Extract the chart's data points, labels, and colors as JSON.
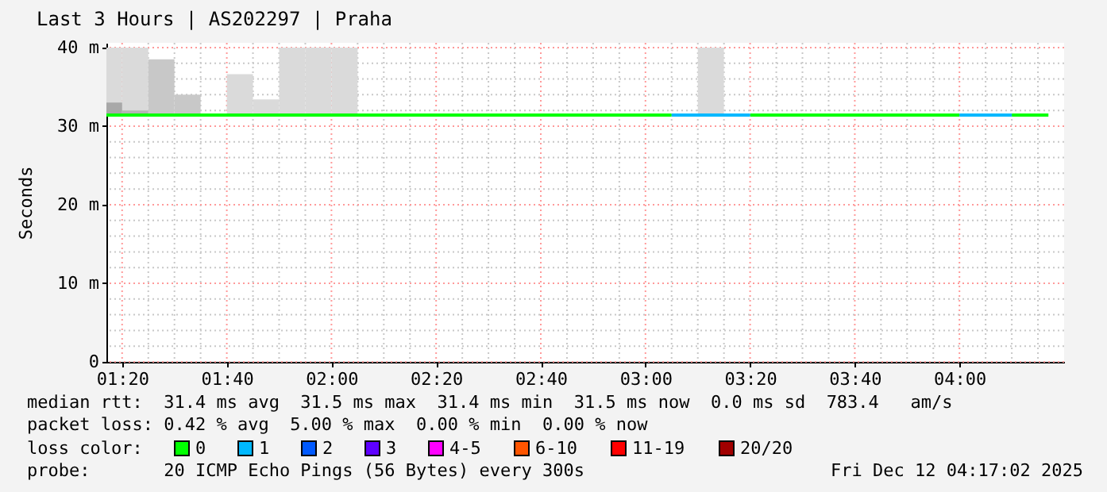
{
  "chart_data": {
    "type": "line",
    "title": "Last 3 Hours | AS202297 | Praha",
    "ylabel": "Seconds",
    "xlim": [
      1.2833,
      4.3333
    ],
    "ylim": [
      0,
      40.6
    ],
    "xticks": [
      {
        "value": 1.3333,
        "label": "01:20"
      },
      {
        "value": 1.4167,
        "label": null
      },
      {
        "value": 1.5,
        "label": null
      },
      {
        "value": 1.5833,
        "label": null
      },
      {
        "value": 1.6667,
        "label": "01:40"
      },
      {
        "value": 1.75,
        "label": null
      },
      {
        "value": 1.8333,
        "label": null
      },
      {
        "value": 1.9167,
        "label": null
      },
      {
        "value": 2,
        "label": "02:00"
      },
      {
        "value": 2.0833,
        "label": null
      },
      {
        "value": 2.1667,
        "label": null
      },
      {
        "value": 2.25,
        "label": null
      },
      {
        "value": 2.3333,
        "label": "02:20"
      },
      {
        "value": 2.4167,
        "label": null
      },
      {
        "value": 2.5,
        "label": null
      },
      {
        "value": 2.5833,
        "label": null
      },
      {
        "value": 2.6667,
        "label": "02:40"
      },
      {
        "value": 2.75,
        "label": null
      },
      {
        "value": 2.8333,
        "label": null
      },
      {
        "value": 2.9167,
        "label": null
      },
      {
        "value": 3,
        "label": "03:00"
      },
      {
        "value": 3.0833,
        "label": null
      },
      {
        "value": 3.1667,
        "label": null
      },
      {
        "value": 3.25,
        "label": null
      },
      {
        "value": 3.3333,
        "label": "03:20"
      },
      {
        "value": 3.4167,
        "label": null
      },
      {
        "value": 3.5,
        "label": null
      },
      {
        "value": 3.5833,
        "label": null
      },
      {
        "value": 3.6667,
        "label": "03:40"
      },
      {
        "value": 3.75,
        "label": null
      },
      {
        "value": 3.8333,
        "label": null
      },
      {
        "value": 3.9167,
        "label": null
      },
      {
        "value": 4,
        "label": "04:00"
      },
      {
        "value": 4.0833,
        "label": null
      },
      {
        "value": 4.1667,
        "label": null
      },
      {
        "value": 4.25,
        "label": null
      }
    ],
    "yticks": [
      0,
      {
        "value": 2,
        "label": null
      },
      {
        "value": 4,
        "label": null
      },
      {
        "value": 6,
        "label": null
      },
      {
        "value": 8,
        "label": null
      },
      {
        "value": 10,
        "label": "10 m"
      },
      {
        "value": 12,
        "label": null
      },
      {
        "value": 14,
        "label": null
      },
      {
        "value": 16,
        "label": null
      },
      {
        "value": 18,
        "label": null
      },
      {
        "value": 20,
        "label": "20 m"
      },
      {
        "value": 22,
        "label": null
      },
      {
        "value": 24,
        "label": null
      },
      {
        "value": 26,
        "label": null
      },
      {
        "value": 28,
        "label": null
      },
      {
        "value": 30,
        "label": "30 m"
      },
      {
        "value": 32,
        "label": null
      },
      {
        "value": 34,
        "label": null
      },
      {
        "value": 36,
        "label": null
      },
      {
        "value": 38,
        "label": null
      },
      {
        "value": 40,
        "label": "40 m"
      }
    ],
    "grid": true,
    "legend": "bottom",
    "legend_title": "loss color:",
    "series": [
      {
        "type": "bar",
        "x": [
          1.2917,
          1.375,
          1.4583,
          1.5417,
          1.7083,
          1.7917,
          1.875,
          1.9583,
          2.0417,
          3.2083
        ],
        "base": [
          31.4,
          31.4,
          31.4,
          31.4,
          31.4,
          31.4,
          31.4,
          31.4,
          31.4,
          31.4
        ],
        "values": [
          8.6,
          8.6,
          7.1,
          2.6,
          5.2,
          2.0,
          8.6,
          8.6,
          8.6,
          8.6
        ],
        "colors": [
          "#dadada",
          "#dadada",
          "#c8c8c8",
          "#c8c8c8",
          "#dadada",
          "#dadada",
          "#dadada",
          "#dadada",
          "#dadada",
          "#dadada"
        ]
      },
      {
        "type": "bar",
        "x": [
          1.2917,
          1.375
        ],
        "base": [
          31.4,
          31.4
        ],
        "values": [
          1.6,
          0.6
        ],
        "colors": [
          "#a8a8a8",
          "#b4b4b4"
        ]
      },
      {
        "name": "0",
        "color": "#00ff00",
        "x": [
          1.2833,
          3.0833,
          3.2,
          3.3333,
          4.0,
          4.08,
          4.1667,
          4.2833
        ],
        "values": [
          31.4,
          31.4,
          null,
          31.4,
          31.4,
          null,
          31.4,
          31.4
        ]
      },
      {
        "name": "1",
        "color": "#00b8ff",
        "x": [
          3.0833,
          3.3333,
          3.5,
          4.0,
          4.1667
        ],
        "values": [
          31.4,
          31.4,
          null,
          31.4,
          31.4
        ]
      },
      {
        "name": "2",
        "color": "#0059ff"
      },
      {
        "name": "3",
        "color": "#5e00ff"
      },
      {
        "name": "4-5",
        "color": "#ff00ff"
      },
      {
        "name": "6-10",
        "color": "#ff5500"
      },
      {
        "name": "11-19",
        "color": "#ff0000"
      },
      {
        "name": "20/20",
        "color": "#a10000"
      }
    ],
    "annotations": [
      "median rtt:  31.4 ms avg  31.5 ms max  31.4 ms min  31.5 ms now  0.0 ms sd  783.4   am/s",
      "packet loss: 0.42 % avg  5.00 % max  0.00 % min  0.00 % now",
      "probe:       20 ICMP Echo Pings (56 Bytes) every 300s",
      "Fri Dec 12 04:17:02 2025"
    ]
  }
}
